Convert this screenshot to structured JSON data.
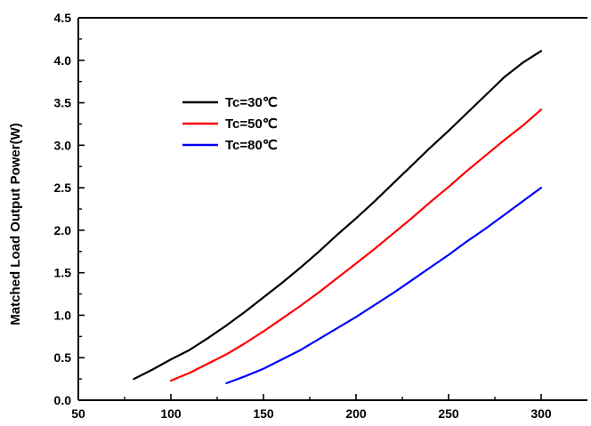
{
  "chart_data": {
    "type": "line",
    "title": "",
    "xlabel": "",
    "ylabel": "Matched Load Output Power(W)",
    "xlim": [
      50,
      325
    ],
    "ylim": [
      0.0,
      4.5
    ],
    "x_ticks": [
      "50",
      "100",
      "150",
      "200",
      "250",
      "300"
    ],
    "y_ticks": [
      "0.0",
      "0.5",
      "1.0",
      "1.5",
      "2.0",
      "2.5",
      "3.0",
      "3.5",
      "4.0",
      "4.5"
    ],
    "grid": false,
    "legend_position": "upper-left",
    "series": [
      {
        "name": "Tc=30℃",
        "color": "#000000",
        "x": [
          80,
          90,
          100,
          110,
          120,
          130,
          140,
          150,
          160,
          170,
          180,
          190,
          200,
          210,
          220,
          230,
          240,
          250,
          260,
          270,
          280,
          290,
          300
        ],
        "y": [
          0.25,
          0.36,
          0.48,
          0.59,
          0.73,
          0.88,
          1.04,
          1.21,
          1.38,
          1.56,
          1.75,
          1.95,
          2.14,
          2.34,
          2.55,
          2.76,
          2.97,
          3.17,
          3.38,
          3.59,
          3.8,
          3.97,
          4.11
        ]
      },
      {
        "name": "Tc=50℃",
        "color": "#ff0000",
        "x": [
          100,
          110,
          120,
          130,
          140,
          150,
          160,
          170,
          180,
          190,
          200,
          210,
          220,
          230,
          240,
          250,
          260,
          270,
          280,
          290,
          300
        ],
        "y": [
          0.23,
          0.32,
          0.43,
          0.54,
          0.67,
          0.81,
          0.96,
          1.11,
          1.27,
          1.44,
          1.61,
          1.78,
          1.96,
          2.14,
          2.33,
          2.51,
          2.7,
          2.88,
          3.06,
          3.23,
          3.42
        ]
      },
      {
        "name": "Tc=80℃",
        "color": "#0000ff",
        "x": [
          130,
          140,
          150,
          160,
          170,
          180,
          190,
          200,
          210,
          220,
          230,
          240,
          250,
          260,
          270,
          280,
          290,
          300
        ],
        "y": [
          0.2,
          0.28,
          0.37,
          0.48,
          0.59,
          0.72,
          0.85,
          0.98,
          1.12,
          1.26,
          1.41,
          1.56,
          1.71,
          1.87,
          2.02,
          2.18,
          2.34,
          2.5
        ]
      }
    ]
  }
}
